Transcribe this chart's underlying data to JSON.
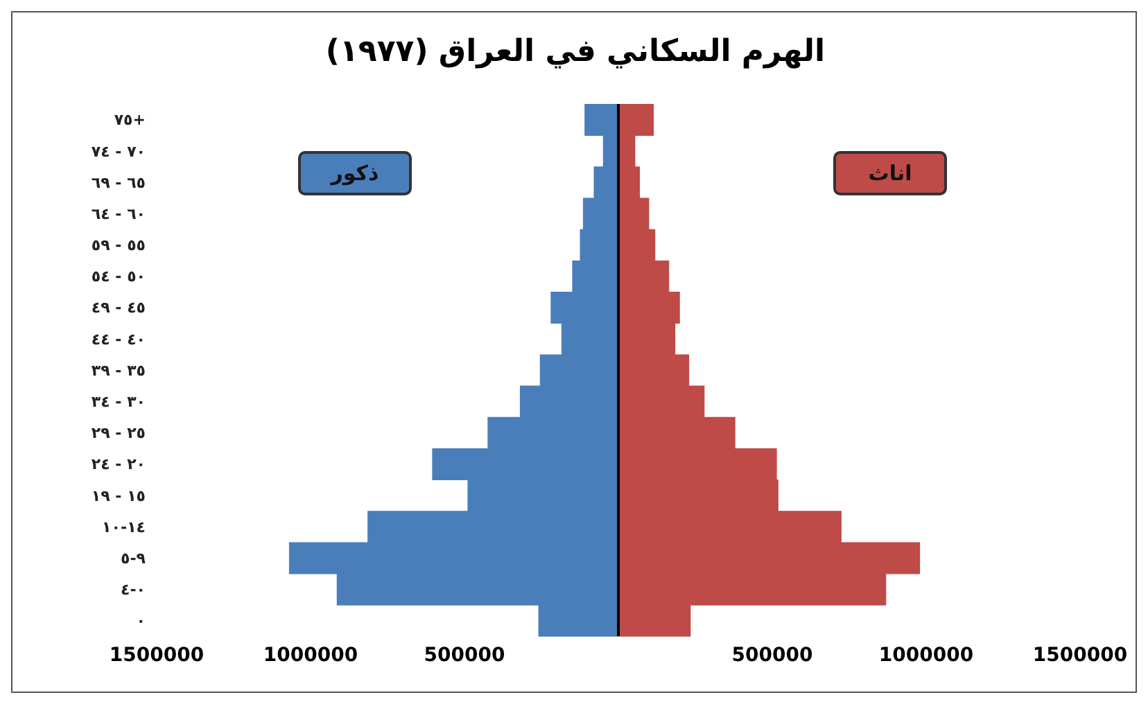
{
  "chart_data": {
    "type": "bar",
    "orientation": "horizontal",
    "stacked": true,
    "title": "الهرم السكاني في العراق (١٩٧٧)",
    "categories": [
      "٧٥+",
      "٧٠ - ٧٤",
      "٦٥ - ٦٩",
      "٦٠ - ٦٤",
      "٥٥ - ٥٩",
      "٥٠ - ٥٤",
      "٤٥ - ٤٩",
      "٤٠ - ٤٤",
      "٣٥ - ٣٩",
      "٣٠ - ٣٤",
      "٢٥ - ٢٩",
      "٢٠ - ٢٤",
      "١٥ - ١٩",
      "١٤-١٠",
      "٩-٥",
      "٠-٤",
      "٠"
    ],
    "series": [
      {
        "name": "ذكور",
        "color": "#4a7ebb",
        "values": [
          -110000,
          -50000,
          -80000,
          -115000,
          -125000,
          -150000,
          -220000,
          -185000,
          -255000,
          -320000,
          -425000,
          -605000,
          -490000,
          -815000,
          -1070000,
          -915000,
          -260000
        ]
      },
      {
        "name": "اناث",
        "color": "#be4b48",
        "values": [
          115000,
          55000,
          70000,
          100000,
          120000,
          165000,
          200000,
          185000,
          230000,
          280000,
          380000,
          515000,
          520000,
          725000,
          980000,
          870000,
          235000
        ]
      }
    ],
    "xlim": [
      -1500000,
      1500000
    ],
    "xticks": [
      {
        "value": -1500000,
        "label": "1500000"
      },
      {
        "value": -1000000,
        "label": "1000000"
      },
      {
        "value": -500000,
        "label": "500000"
      },
      500000,
      1000000,
      1500000
    ],
    "ref_lines": [
      {
        "axis": "x",
        "value": 0,
        "color": "#000000"
      }
    ],
    "grid": false,
    "legend": "top"
  }
}
